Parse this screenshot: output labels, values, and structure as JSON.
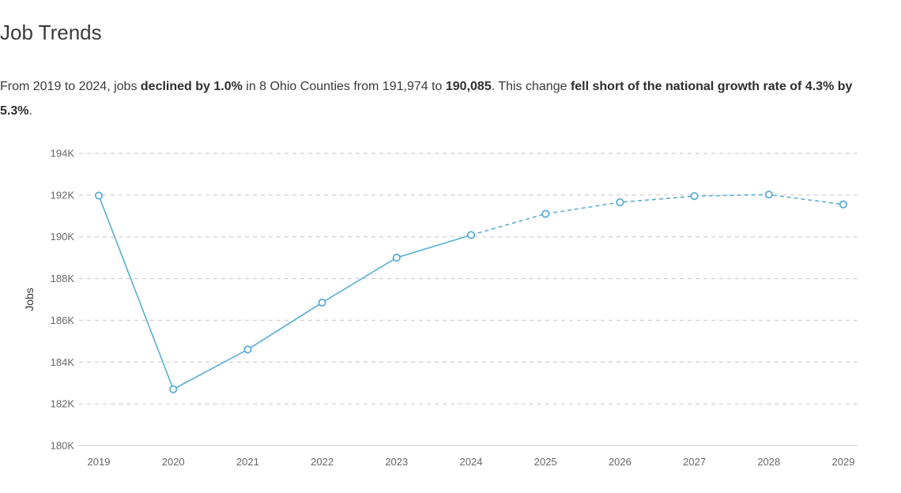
{
  "title": "Job Trends",
  "summary": {
    "t1": "From 2019 to 2024, jobs ",
    "b1": "declined by 1.0%",
    "t2": " in 8 Ohio Counties from 191,974 to ",
    "b2": "190,085",
    "t3": ". This change ",
    "b3": "fell short of the national growth rate of 4.3% by 5.3%",
    "t4": "."
  },
  "chart_data": {
    "type": "line",
    "x": [
      2019,
      2020,
      2021,
      2022,
      2023,
      2024,
      2025,
      2026,
      2027,
      2028,
      2029
    ],
    "series": [
      {
        "values": [
          191974,
          182700,
          184600,
          186850,
          189000,
          190085,
          191100,
          191650,
          191950,
          192020,
          191550
        ],
        "historical_through": 2024,
        "projected_from": 2024,
        "color": "#5aaed4"
      }
    ],
    "ylabel": "Jobs",
    "ylim": [
      180000,
      194000
    ],
    "yticks": [
      180000,
      182000,
      184000,
      186000,
      188000,
      190000,
      192000,
      194000
    ],
    "ytick_labels": [
      "180K",
      "182K",
      "184K",
      "186K",
      "188K",
      "190K",
      "192K",
      "194K"
    ],
    "xtick_labels": [
      "2019",
      "2020",
      "2021",
      "2022",
      "2023",
      "2024",
      "2025",
      "2026",
      "2027",
      "2028",
      "2029"
    ],
    "grid": true,
    "grid_style": "dashed",
    "grid_color": "#c8c8c8"
  }
}
